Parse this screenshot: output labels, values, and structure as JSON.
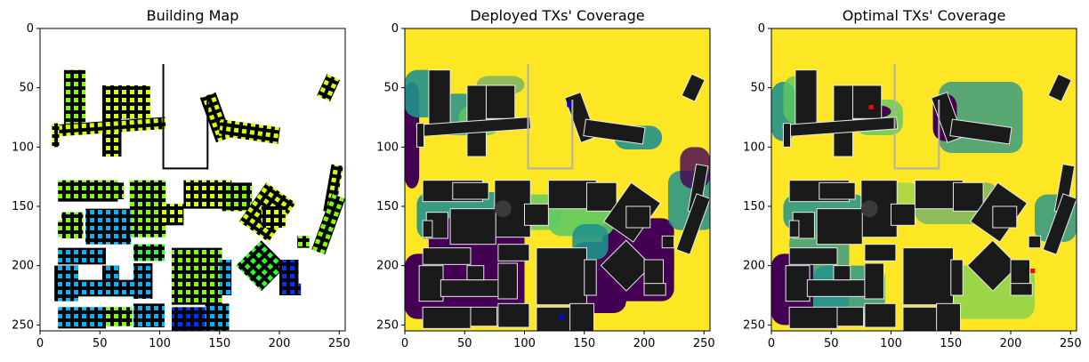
{
  "chart_data": [
    {
      "type": "heatmap",
      "title": "Building Map",
      "kind": "building",
      "xlim": [
        0,
        255
      ],
      "ylim": [
        255,
        0
      ],
      "xticks": [
        0,
        50,
        100,
        150,
        200,
        250
      ],
      "yticks": [
        0,
        50,
        100,
        150,
        200,
        250
      ],
      "markers": []
    },
    {
      "type": "heatmap",
      "title": "Deployed TXs' Coverage",
      "kind": "deployed",
      "xlim": [
        0,
        255
      ],
      "ylim": [
        255,
        0
      ],
      "xticks": [
        0,
        50,
        100,
        150,
        200,
        250
      ],
      "yticks": [
        0,
        50,
        100,
        150,
        200,
        250
      ],
      "markers": [
        {
          "name": "tx-north",
          "x": 137,
          "y": 64,
          "color": "#0000ff"
        },
        {
          "name": "tx-south",
          "x": 131,
          "y": 243,
          "color": "#0000ff"
        }
      ]
    },
    {
      "type": "heatmap",
      "title": "Optimal TXs' Coverage",
      "kind": "optimal",
      "xlim": [
        0,
        255
      ],
      "ylim": [
        255,
        0
      ],
      "xticks": [
        0,
        50,
        100,
        150,
        200,
        250
      ],
      "yticks": [
        0,
        50,
        100,
        150,
        200,
        250
      ],
      "markers": [
        {
          "name": "tx-north",
          "x": 83,
          "y": 66,
          "color": "#ff0000"
        },
        {
          "name": "tx-east",
          "x": 218,
          "y": 204,
          "color": "#ff0000"
        }
      ]
    }
  ],
  "colors": {
    "building": "#000000",
    "background": "#ffffff",
    "coverage_full": "#fde725",
    "coverage_high": "#5ec962",
    "coverage_mid": "#21918c",
    "coverage_none": "#440154",
    "building_shaded": "#1a1a1a",
    "rooftop_green": "#7fff00",
    "rooftop_blue": "#00a8ff",
    "rooftop_darkblue": "#0033ff"
  }
}
